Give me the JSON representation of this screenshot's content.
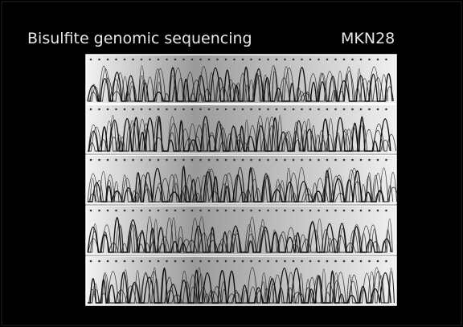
{
  "header": {
    "title": "Bisulfite genomic sequencing",
    "label": "MKN28"
  }
}
